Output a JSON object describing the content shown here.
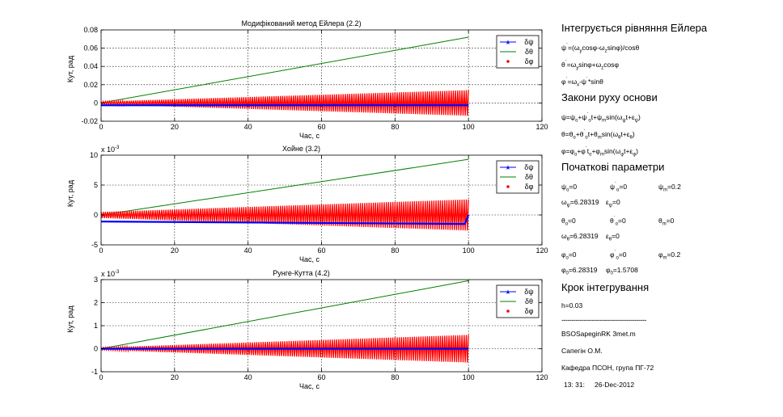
{
  "chart_data": [
    {
      "type": "line",
      "title": "Модифікований метод Ейлера (2.2)",
      "xlabel": "Час, с",
      "ylabel": "Кут, рад",
      "exponent": "",
      "xlim": [
        0,
        120
      ],
      "ylim": [
        -0.02,
        0.08
      ],
      "xticks": [
        0,
        20,
        40,
        60,
        80,
        100,
        120
      ],
      "yticks": [
        -0.02,
        0,
        0.02,
        0.04,
        0.06,
        0.08
      ],
      "ytick_labels": [
        "-0.02",
        "0",
        "0.02",
        "0.04",
        "0.06",
        "0.08"
      ],
      "grid": true,
      "legend_position": "top-right",
      "series": [
        {
          "name": "δψ",
          "style": "line-star",
          "color": "#0000ff",
          "x": [
            0,
            100
          ],
          "y": [
            -0.0025,
            -0.0025
          ]
        },
        {
          "name": "δθ",
          "style": "line",
          "color": "#008000",
          "x": [
            0,
            100
          ],
          "y": [
            0,
            0.072
          ]
        },
        {
          "name": "δφ",
          "style": "oscillation",
          "color": "#ff0000",
          "x": [
            0,
            100
          ],
          "y_envelope": [
            0.0015,
            0.014
          ]
        }
      ]
    },
    {
      "type": "line",
      "title": "Хойне (3.2)",
      "xlabel": "Час, с",
      "ylabel": "Кут, рад",
      "exponent": "-3",
      "xlim": [
        0,
        120
      ],
      "ylim": [
        -5,
        10
      ],
      "xticks": [
        0,
        20,
        40,
        60,
        80,
        100,
        120
      ],
      "yticks": [
        -5,
        0,
        5,
        10
      ],
      "ytick_labels": [
        "-5",
        "0",
        "5",
        "10"
      ],
      "grid": true,
      "legend_position": "top-right",
      "series": [
        {
          "name": "δψ",
          "style": "line-star",
          "color": "#0000ff",
          "x": [
            0,
            99,
            100
          ],
          "y": [
            -1.1,
            -1.5,
            0
          ]
        },
        {
          "name": "δθ",
          "style": "line",
          "color": "#008000",
          "x": [
            0,
            100
          ],
          "y": [
            0,
            9.3
          ]
        },
        {
          "name": "δφ",
          "style": "oscillation",
          "color": "#ff0000",
          "x": [
            0,
            100
          ],
          "y_envelope": [
            0.5,
            2.6
          ]
        }
      ]
    },
    {
      "type": "line",
      "title": "Рунге-Кутта (4.2)",
      "xlabel": "Час, с",
      "ylabel": "Кут, рад",
      "exponent": "-3",
      "xlim": [
        0,
        120
      ],
      "ylim": [
        -1,
        3
      ],
      "xticks": [
        0,
        20,
        40,
        60,
        80,
        100,
        120
      ],
      "yticks": [
        -1,
        0,
        1,
        2,
        3
      ],
      "ytick_labels": [
        "-1",
        "0",
        "1",
        "2",
        "3"
      ],
      "grid": true,
      "legend_position": "top-right",
      "series": [
        {
          "name": "δψ",
          "style": "line-star",
          "color": "#0000ff",
          "x": [
            0,
            100
          ],
          "y": [
            0,
            0
          ]
        },
        {
          "name": "δθ",
          "style": "line",
          "color": "#008000",
          "x": [
            0,
            100
          ],
          "y": [
            0,
            2.95
          ]
        },
        {
          "name": "δφ",
          "style": "oscillation",
          "color": "#ff0000",
          "x": [
            0,
            100
          ],
          "y_envelope": [
            0.05,
            0.6
          ]
        }
      ]
    }
  ],
  "side_panel": {
    "h1": "Інтегрується рівняння Ейлера",
    "h2": "Закони руху основи",
    "h3": "Початкові параметри",
    "h4": "Крок інтегрування",
    "step": "h=0.03",
    "dashes": "------------------------------------------",
    "file": "BSOSapeginRK 3met.m",
    "author": "Сапегін О.М.",
    "dept": "Кафедра ПСОН, група ПГ-72",
    "time": "13: 31:",
    "date": "26-Dec-2012"
  }
}
